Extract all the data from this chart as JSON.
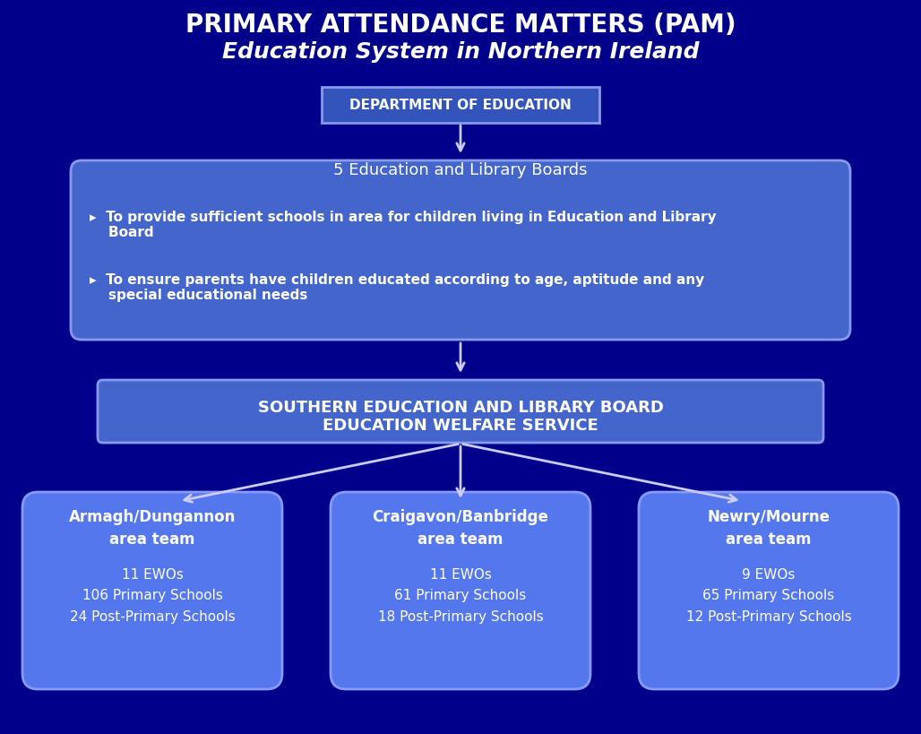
{
  "title_line1": "PRIMARY ATTENDANCE MATTERS (PAM)",
  "title_line2": "Education System in Northern Ireland",
  "bg_color": "#00008B",
  "box_color_dark": "#3333AA",
  "box_color_medium": "#4466CC",
  "box_color_light": "#5577DD",
  "text_color": "#FFFFFF",
  "arrow_color": "#CCCCFF",
  "box1_text": "DEPARTMENT OF EDUCATION",
  "box2_title": "5 Education and Library Boards",
  "box2_bullet1": "▸  To provide sufficient schools in area for children living in Education and Library\n    Board",
  "box2_bullet2": "▸  To ensure parents have children educated according to age, aptitude and any\n    special educational needs",
  "box3_text": "SOUTHERN EDUCATION AND LIBRARY BOARD\nEDUCATION WELFARE SERVICE",
  "box4_title": "Armagh/Dungannon\narea team",
  "box4_body": "11 EWOs\n106 Primary Schools\n24 Post-Primary Schools",
  "box5_title": "Craigavon/Banbridge\narea team",
  "box5_body": "11 EWOs\n61 Primary Schools\n18 Post-Primary Schools",
  "box6_title": "Newry/Mourne\narea team",
  "box6_body": "9 EWOs\n65 Primary Schools\n12 Post-Primary Schools"
}
